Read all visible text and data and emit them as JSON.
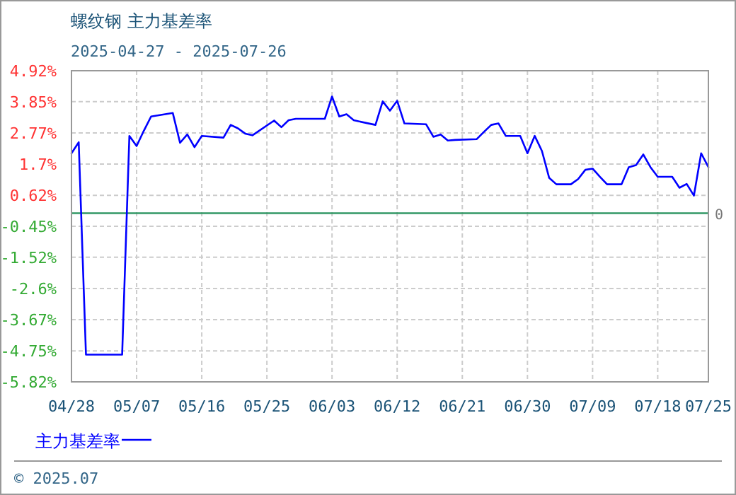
{
  "chart_data": {
    "type": "line",
    "title": "螺纹钢 主力基差率",
    "subtitle": "2025-04-27 - 2025-07-26",
    "x": [
      "2025-04-28",
      "2025-04-29",
      "2025-04-30",
      "2025-05-05",
      "2025-05-06",
      "2025-05-07",
      "2025-05-08",
      "2025-05-09",
      "2025-05-12",
      "2025-05-13",
      "2025-05-14",
      "2025-05-15",
      "2025-05-16",
      "2025-05-19",
      "2025-05-20",
      "2025-05-21",
      "2025-05-22",
      "2025-05-23",
      "2025-05-26",
      "2025-05-27",
      "2025-05-28",
      "2025-05-29",
      "2025-06-02",
      "2025-06-03",
      "2025-06-04",
      "2025-06-05",
      "2025-06-06",
      "2025-06-09",
      "2025-06-10",
      "2025-06-11",
      "2025-06-12",
      "2025-06-13",
      "2025-06-16",
      "2025-06-17",
      "2025-06-18",
      "2025-06-19",
      "2025-06-20",
      "2025-06-23",
      "2025-06-24",
      "2025-06-25",
      "2025-06-26",
      "2025-06-27",
      "2025-06-29",
      "2025-06-30",
      "2025-07-01",
      "2025-07-02",
      "2025-07-03",
      "2025-07-04",
      "2025-07-06",
      "2025-07-07",
      "2025-07-08",
      "2025-07-09",
      "2025-07-10",
      "2025-07-11",
      "2025-07-13",
      "2025-07-14",
      "2025-07-15",
      "2025-07-16",
      "2025-07-17",
      "2025-07-18",
      "2025-07-20",
      "2025-07-21",
      "2025-07-22",
      "2025-07-23",
      "2025-07-24",
      "2025-07-25"
    ],
    "series": [
      {
        "name": "主力基差率",
        "color": "#0000ff",
        "values": [
          2.07,
          2.45,
          -4.88,
          -4.88,
          2.67,
          2.32,
          2.85,
          3.34,
          3.46,
          2.43,
          2.72,
          2.28,
          2.67,
          2.61,
          3.05,
          2.93,
          2.75,
          2.69,
          3.2,
          2.97,
          3.21,
          3.26,
          3.26,
          4.03,
          3.34,
          3.42,
          3.21,
          3.05,
          3.86,
          3.54,
          3.88,
          3.1,
          3.07,
          2.64,
          2.72,
          2.51,
          2.53,
          2.56,
          2.81,
          3.05,
          3.1,
          2.67,
          2.67,
          2.07,
          2.67,
          2.15,
          1.22,
          1.0,
          1.0,
          1.18,
          1.5,
          1.54,
          1.26,
          1.0,
          1.0,
          1.59,
          1.66,
          2.03,
          1.59,
          1.26,
          1.26,
          0.88,
          1.01,
          0.61,
          2.07,
          1.59
        ]
      }
    ],
    "xlim": [
      "2025-04-28",
      "2025-07-25"
    ],
    "xticks": [
      {
        "value": "2025-04-28",
        "label": "04/28"
      },
      {
        "value": "2025-05-07",
        "label": "05/07"
      },
      {
        "value": "2025-05-16",
        "label": "05/16"
      },
      {
        "value": "2025-05-25",
        "label": "05/25"
      },
      {
        "value": "2025-06-03",
        "label": "06/03"
      },
      {
        "value": "2025-06-12",
        "label": "06/12"
      },
      {
        "value": "2025-06-21",
        "label": "06/21"
      },
      {
        "value": "2025-06-30",
        "label": "06/30"
      },
      {
        "value": "2025-07-09",
        "label": "07/09"
      },
      {
        "value": "2025-07-18",
        "label": "07/18"
      },
      {
        "value": "2025-07-25",
        "label": "07/25"
      }
    ],
    "ylim": [
      -5.82,
      4.92
    ],
    "yticks": [
      {
        "value": -5.82,
        "label": "-5.82%"
      },
      {
        "value": -4.75,
        "label": "-4.75%"
      },
      {
        "value": -3.67,
        "label": "-3.67%"
      },
      {
        "value": -2.6,
        "label": "-2.6%"
      },
      {
        "value": -1.52,
        "label": "-1.52%"
      },
      {
        "value": -0.45,
        "label": "-0.45%"
      },
      {
        "value": 0.62,
        "label": "0.62%"
      },
      {
        "value": 1.7,
        "label": "1.7%"
      },
      {
        "value": 2.77,
        "label": "2.77%"
      },
      {
        "value": 3.85,
        "label": "3.85%"
      },
      {
        "value": 4.92,
        "label": "4.92%"
      }
    ],
    "ref_lines": [
      {
        "axis": "y",
        "value": 0,
        "label": "0",
        "color": "#339966"
      }
    ],
    "grid": true,
    "legend": "bottom left",
    "marker": "none",
    "line_style": "solid",
    "annotations": [
      "© 2025.07"
    ]
  }
}
